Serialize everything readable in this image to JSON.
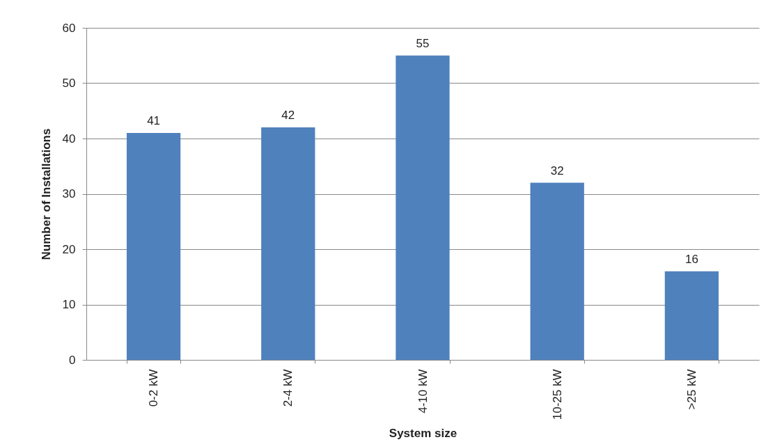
{
  "chart_data": {
    "type": "bar",
    "xlabel": "System size",
    "ylabel": "Number of Installations",
    "categories": [
      "0-2 kW",
      "2-4 kW",
      "4-10 kW",
      "10-25 kW",
      ">25 kW"
    ],
    "values": [
      41,
      42,
      55,
      32,
      16
    ],
    "color": "#4f81bd",
    "ylim": [
      0,
      60
    ],
    "yticks": [
      0,
      10,
      20,
      30,
      40,
      50,
      60
    ],
    "grid": "y",
    "data_labels": true
  }
}
